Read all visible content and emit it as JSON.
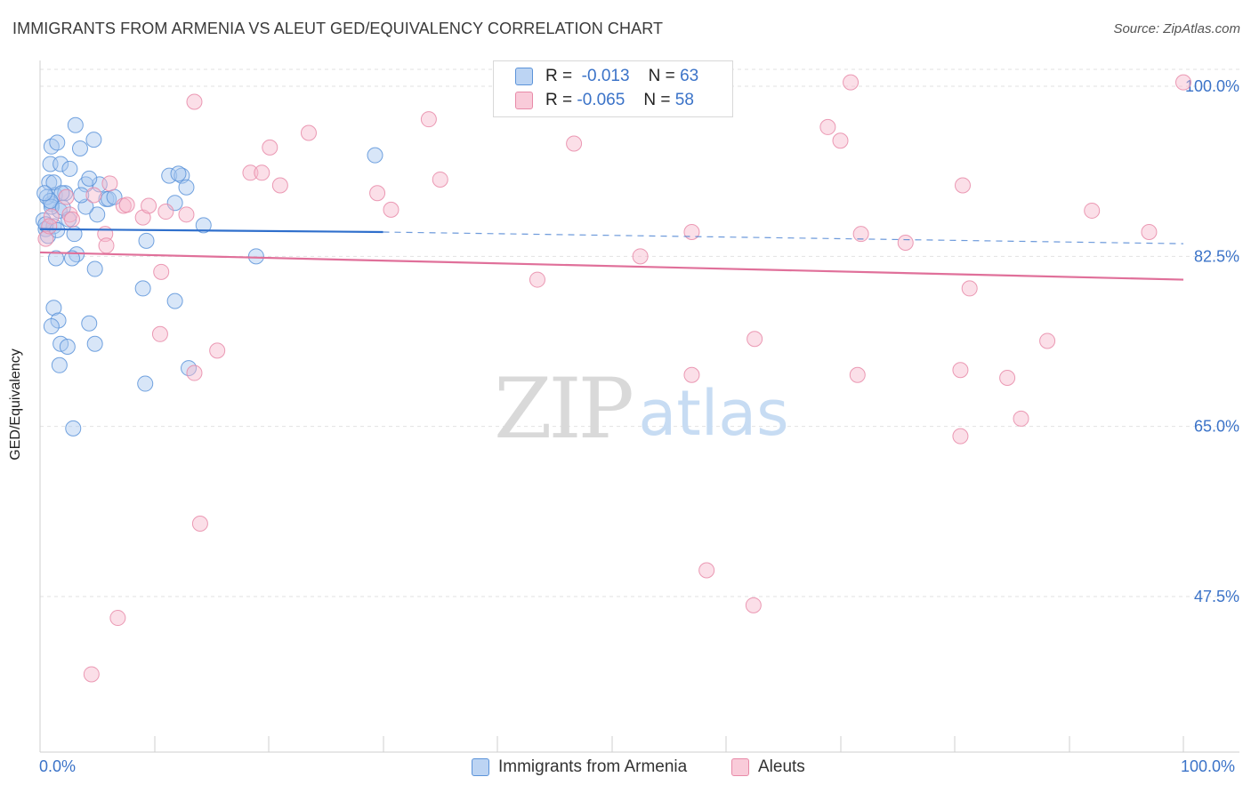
{
  "title": "IMMIGRANTS FROM ARMENIA VS ALEUT GED/EQUIVALENCY CORRELATION CHART",
  "source": "Source: ZipAtlas.com",
  "watermark": {
    "zip": "ZIP",
    "atlas": "atlas"
  },
  "legend": {
    "armenia": {
      "r_label": "R =",
      "r_value": "-0.013",
      "n_label": "N =",
      "n_value": "63"
    },
    "aleut": {
      "r_label": "R =",
      "r_value": "-0.065",
      "n_label": "N =",
      "n_value": "58"
    }
  },
  "colors": {
    "blue_fill": "#a9c8f0",
    "blue_stroke": "#5b93d9",
    "blue_line": "#2f6fcc",
    "pink_fill": "#f7b9cc",
    "pink_stroke": "#e88aa8",
    "pink_line": "#e0709a",
    "axis_text": "#3b73c8",
    "grid": "#e2e2e2"
  },
  "chart_data": {
    "type": "scatter",
    "title": "IMMIGRANTS FROM ARMENIA VS ALEUT GED/EQUIVALENCY CORRELATION CHART",
    "xlabel": "",
    "ylabel": "GED/Equivalency",
    "xlim": [
      0,
      100
    ],
    "ylim": [
      30,
      101.5
    ],
    "x_tick_labels": [
      "0.0%",
      "100.0%"
    ],
    "y_ticks": [
      100,
      82.5,
      65,
      47.5
    ],
    "y_tick_labels": [
      "100.0%",
      "82.5%",
      "65.0%",
      "47.5%"
    ],
    "series": [
      {
        "name": "Immigrants from Armenia",
        "color": "blue",
        "trend": {
          "x0": 0,
          "y0": 85.3,
          "x1": 30,
          "y1": 85.0,
          "x_dashed_end": 100,
          "y_dashed_end": 83.8
        },
        "points": [
          [
            0.3,
            86.2
          ],
          [
            0.5,
            85.3
          ],
          [
            0.7,
            84.6
          ],
          [
            1.0,
            87.9
          ],
          [
            1.2,
            85.6
          ],
          [
            0.8,
            90.1
          ],
          [
            0.9,
            92.0
          ],
          [
            1.0,
            93.8
          ],
          [
            1.5,
            94.2
          ],
          [
            1.8,
            92.0
          ],
          [
            1.3,
            88.8
          ],
          [
            2.2,
            89.0
          ],
          [
            1.7,
            87.2
          ],
          [
            2.5,
            86.3
          ],
          [
            3.0,
            84.8
          ],
          [
            3.2,
            82.7
          ],
          [
            1.4,
            82.3
          ],
          [
            2.8,
            82.3
          ],
          [
            4.8,
            81.2
          ],
          [
            3.5,
            93.6
          ],
          [
            3.1,
            96.0
          ],
          [
            4.7,
            94.5
          ],
          [
            5.2,
            89.9
          ],
          [
            5.8,
            88.4
          ],
          [
            4.0,
            89.9
          ],
          [
            4.3,
            90.5
          ],
          [
            5.0,
            86.8
          ],
          [
            6.0,
            88.4
          ],
          [
            4.0,
            87.6
          ],
          [
            1.2,
            90.1
          ],
          [
            0.6,
            88.6
          ],
          [
            1.0,
            87.6
          ],
          [
            1.9,
            89.0
          ],
          [
            2.6,
            91.5
          ],
          [
            9.0,
            79.2
          ],
          [
            9.3,
            84.1
          ],
          [
            11.3,
            90.8
          ],
          [
            12.4,
            90.8
          ],
          [
            12.1,
            91.0
          ],
          [
            12.8,
            89.6
          ],
          [
            11.8,
            88.0
          ],
          [
            14.3,
            85.7
          ],
          [
            18.9,
            82.5
          ],
          [
            29.3,
            92.9
          ],
          [
            11.8,
            77.9
          ],
          [
            1.2,
            77.2
          ],
          [
            1.6,
            75.9
          ],
          [
            1.0,
            75.3
          ],
          [
            4.3,
            75.6
          ],
          [
            1.8,
            73.5
          ],
          [
            2.4,
            73.2
          ],
          [
            4.8,
            73.5
          ],
          [
            1.7,
            71.3
          ],
          [
            9.2,
            69.4
          ],
          [
            13.0,
            71.0
          ],
          [
            2.9,
            64.8
          ],
          [
            0.5,
            85.8
          ],
          [
            0.9,
            88.2
          ],
          [
            1.5,
            85.2
          ],
          [
            2.0,
            87.5
          ],
          [
            3.6,
            88.8
          ],
          [
            0.4,
            89.0
          ],
          [
            6.5,
            88.6
          ]
        ]
      },
      {
        "name": "Aleuts",
        "color": "pink",
        "trend": {
          "x0": 0,
          "y0": 82.9,
          "x1": 100,
          "y1": 80.1
        },
        "points": [
          [
            0.5,
            84.3
          ],
          [
            1.0,
            86.6
          ],
          [
            2.3,
            88.6
          ],
          [
            2.6,
            86.8
          ],
          [
            2.8,
            86.3
          ],
          [
            4.7,
            88.8
          ],
          [
            5.7,
            84.8
          ],
          [
            5.8,
            83.6
          ],
          [
            6.1,
            90.0
          ],
          [
            7.3,
            87.7
          ],
          [
            7.6,
            87.8
          ],
          [
            9.0,
            86.5
          ],
          [
            9.5,
            87.7
          ],
          [
            11.0,
            87.1
          ],
          [
            12.8,
            86.8
          ],
          [
            10.6,
            80.9
          ],
          [
            10.5,
            74.5
          ],
          [
            13.5,
            98.4
          ],
          [
            15.5,
            72.8
          ],
          [
            13.5,
            70.5
          ],
          [
            14.0,
            55.0
          ],
          [
            6.8,
            45.3
          ],
          [
            4.5,
            39.5
          ],
          [
            18.4,
            91.1
          ],
          [
            19.4,
            91.1
          ],
          [
            20.1,
            93.7
          ],
          [
            21.0,
            89.8
          ],
          [
            23.5,
            95.2
          ],
          [
            29.5,
            89.0
          ],
          [
            30.7,
            87.3
          ],
          [
            34.0,
            96.6
          ],
          [
            35.0,
            90.4
          ],
          [
            43.5,
            80.1
          ],
          [
            46.7,
            94.1
          ],
          [
            51.8,
            100.4
          ],
          [
            52.5,
            82.5
          ],
          [
            57.0,
            85.0
          ],
          [
            57.0,
            70.3
          ],
          [
            58.3,
            50.2
          ],
          [
            62.5,
            74.0
          ],
          [
            62.4,
            46.6
          ],
          [
            68.9,
            95.8
          ],
          [
            70.0,
            94.4
          ],
          [
            70.9,
            100.4
          ],
          [
            71.8,
            84.8
          ],
          [
            71.5,
            70.3
          ],
          [
            75.7,
            83.9
          ],
          [
            80.5,
            70.8
          ],
          [
            80.7,
            89.8
          ],
          [
            80.5,
            64.0
          ],
          [
            81.3,
            79.2
          ],
          [
            84.6,
            70.0
          ],
          [
            85.8,
            65.8
          ],
          [
            88.1,
            73.8
          ],
          [
            92.0,
            87.2
          ],
          [
            97.0,
            85.0
          ],
          [
            100.0,
            100.4
          ],
          [
            0.8,
            85.6
          ]
        ]
      }
    ]
  },
  "bottom_legend": {
    "armenia": "Immigrants from Armenia",
    "aleut": "Aleuts"
  }
}
